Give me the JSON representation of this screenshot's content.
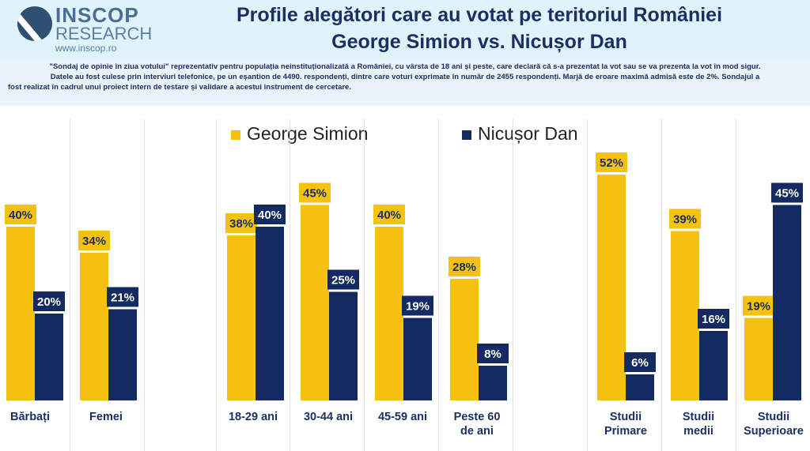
{
  "logo": {
    "line1": "INSCOP",
    "line2": "RESEARCH",
    "line3": "www.inscop.ro"
  },
  "title": {
    "line1": "Profile alegători care au votat pe teritoriul României",
    "line2": "George Simion vs. Nicușor Dan"
  },
  "note": {
    "line1": "\"Sondaj de opinie în ziua votului\" reprezentativ pentru populația neinstituționalizată a României, cu vârsta de 18 ani și peste, care declară că s-a prezentat la vot sau se va prezenta la vot în mod sigur.",
    "line2": "Datele au fost culese prin interviuri telefonice, pe un eșantion de 4490. respondenți, dintre care voturi exprimate în număr de 2455 respondenți. Marjă de eroare maximă admisă este de 2%. Sondajul a",
    "line3": "fost realizat în cadrul unui proiect intern de testare și validare a acestui instrument de cercetare."
  },
  "chart_data": {
    "type": "bar",
    "ylim": [
      0,
      60
    ],
    "categories": [
      "Bărbați",
      "Femei",
      "18-29 ani",
      "30-44 ani",
      "45-59 ani",
      "Peste 60 de ani",
      "Studii Primare",
      "Studii medii",
      "Studii Superioare"
    ],
    "series": [
      {
        "name": "George Simion",
        "color": "#f5c20f",
        "values": [
          40,
          34,
          38,
          45,
          40,
          28,
          52,
          39,
          19
        ],
        "labels": [
          "40%",
          "34%",
          "38%",
          "45%",
          "40%",
          "28%",
          "52%",
          "39%",
          "19%"
        ]
      },
      {
        "name": "Nicușor Dan",
        "color": "#142a63",
        "values": [
          20,
          21,
          40,
          25,
          19,
          8,
          6,
          16,
          45
        ],
        "labels": [
          "20%",
          "21%",
          "40%",
          "25%",
          "19%",
          "8%",
          "6%",
          "16%",
          "45%"
        ]
      }
    ]
  },
  "category_labels": {
    "c0": [
      "Bărbați"
    ],
    "c1": [
      "Femei"
    ],
    "c2": [
      "18-29 ani"
    ],
    "c3": [
      "30-44 ani"
    ],
    "c4": [
      "45-59 ani"
    ],
    "c5": [
      "Peste 60",
      "de ani"
    ],
    "c6": [
      "Studii",
      "Primare"
    ],
    "c7": [
      "Studii",
      "medii"
    ],
    "c8": [
      "Studii",
      "Superioare"
    ]
  }
}
